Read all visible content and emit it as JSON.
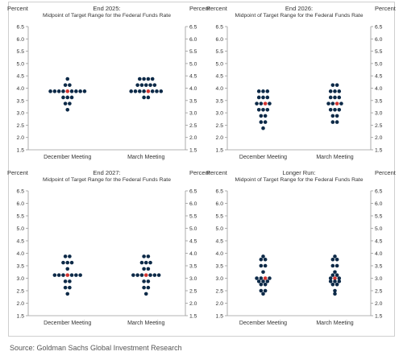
{
  "source": "Source: Goldman Sachs Global Investment Research",
  "colors": {
    "dot": "#0d2a48",
    "median": "#d2332f",
    "axis": "#9a9a9a",
    "text": "#333333",
    "border": "#cfcfcf"
  },
  "chart_data": [
    {
      "type": "scatter",
      "title": "End 2025:",
      "subtitle": "Midpoint of Target Range for the Federal Funds Rate",
      "ylabel_left": "Percent",
      "ylabel_right": "Percent",
      "ylim": [
        1.5,
        6.5
      ],
      "yticks": [
        "6.5",
        "6.0",
        "5.5",
        "5.0",
        "4.5",
        "4.0",
        "3.5",
        "3.0",
        "2.5",
        "2.0",
        "1.5"
      ],
      "categories": [
        "December Meeting",
        "March Meeting"
      ],
      "series": [
        {
          "rows": [
            {
              "y": 4.375,
              "n": 1
            },
            {
              "y": 4.125,
              "n": 2
            },
            {
              "y": 3.875,
              "n": 9
            },
            {
              "y": 3.625,
              "n": 3
            },
            {
              "y": 3.375,
              "n": 2
            },
            {
              "y": 3.125,
              "n": 1
            }
          ],
          "median": 3.875
        },
        {
          "rows": [
            {
              "y": 4.375,
              "n": 4
            },
            {
              "y": 4.125,
              "n": 5
            },
            {
              "y": 3.875,
              "n": 8
            },
            {
              "y": 3.625,
              "n": 2
            }
          ],
          "median": 3.875
        }
      ]
    },
    {
      "type": "scatter",
      "title": "End 2026:",
      "subtitle": "Midpoint of Target Range for the Federal Funds Rate",
      "ylabel_left": "Percent",
      "ylabel_right": "Percent",
      "ylim": [
        1.5,
        6.5
      ],
      "yticks": [
        "6.5",
        "6.0",
        "5.5",
        "5.0",
        "4.5",
        "4.0",
        "3.5",
        "3.0",
        "2.5",
        "2.0",
        "1.5"
      ],
      "categories": [
        "December Meeting",
        "March Meeting"
      ],
      "series": [
        {
          "rows": [
            {
              "y": 3.875,
              "n": 3
            },
            {
              "y": 3.625,
              "n": 3
            },
            {
              "y": 3.375,
              "n": 4
            },
            {
              "y": 3.125,
              "n": 3
            },
            {
              "y": 2.875,
              "n": 2
            },
            {
              "y": 2.625,
              "n": 2
            },
            {
              "y": 2.375,
              "n": 1
            }
          ],
          "median": 3.375
        },
        {
          "rows": [
            {
              "y": 4.125,
              "n": 2
            },
            {
              "y": 3.875,
              "n": 3
            },
            {
              "y": 3.625,
              "n": 3
            },
            {
              "y": 3.375,
              "n": 4
            },
            {
              "y": 3.125,
              "n": 3
            },
            {
              "y": 2.875,
              "n": 2
            },
            {
              "y": 2.625,
              "n": 2
            }
          ],
          "median": 3.375
        }
      ]
    },
    {
      "type": "scatter",
      "title": "End 2027:",
      "subtitle": "Midpoint of Target Range for the Federal Funds Rate",
      "ylabel_left": "Percent",
      "ylabel_right": "Percent",
      "ylim": [
        1.5,
        6.5
      ],
      "yticks": [
        "6.5",
        "6.0",
        "5.5",
        "5.0",
        "4.5",
        "4.0",
        "3.5",
        "3.0",
        "2.5",
        "2.0",
        "1.5"
      ],
      "categories": [
        "December Meeting",
        "March Meeting"
      ],
      "series": [
        {
          "rows": [
            {
              "y": 3.875,
              "n": 2
            },
            {
              "y": 3.625,
              "n": 3
            },
            {
              "y": 3.375,
              "n": 1
            },
            {
              "y": 3.125,
              "n": 7
            },
            {
              "y": 2.875,
              "n": 2
            },
            {
              "y": 2.625,
              "n": 2
            },
            {
              "y": 2.375,
              "n": 1
            }
          ],
          "median": 3.125
        },
        {
          "rows": [
            {
              "y": 3.875,
              "n": 2
            },
            {
              "y": 3.625,
              "n": 3
            },
            {
              "y": 3.375,
              "n": 2
            },
            {
              "y": 3.125,
              "n": 7
            },
            {
              "y": 2.875,
              "n": 2
            },
            {
              "y": 2.625,
              "n": 2
            },
            {
              "y": 2.375,
              "n": 1
            }
          ],
          "median": 3.125
        }
      ]
    },
    {
      "type": "scatter",
      "title": "Longer Run:",
      "subtitle": "Midpoint of Target Range for the Federal Funds Rate",
      "ylabel_left": "Percent",
      "ylabel_right": "Percent",
      "ylim": [
        1.5,
        6.5
      ],
      "yticks": [
        "6.5",
        "6.0",
        "5.5",
        "5.0",
        "4.5",
        "4.0",
        "3.5",
        "3.0",
        "2.5",
        "2.0",
        "1.5"
      ],
      "categories": [
        "December Meeting",
        "March Meeting"
      ],
      "series": [
        {
          "rows": [
            {
              "y": 3.875,
              "n": 1
            },
            {
              "y": 3.75,
              "n": 2
            },
            {
              "y": 3.5,
              "n": 2
            },
            {
              "y": 3.25,
              "n": 1
            },
            {
              "y": 3.0,
              "n": 4
            },
            {
              "y": 2.875,
              "n": 3
            },
            {
              "y": 2.75,
              "n": 2
            },
            {
              "y": 2.5,
              "n": 2
            },
            {
              "y": 2.375,
              "n": 1
            }
          ],
          "median": 3.0
        },
        {
          "rows": [
            {
              "y": 3.875,
              "n": 1
            },
            {
              "y": 3.75,
              "n": 2
            },
            {
              "y": 3.5,
              "n": 2
            },
            {
              "y": 3.25,
              "n": 1
            },
            {
              "y": 3.125,
              "n": 2
            },
            {
              "y": 3.0,
              "n": 3
            },
            {
              "y": 2.875,
              "n": 3
            },
            {
              "y": 2.75,
              "n": 2
            },
            {
              "y": 2.5,
              "n": 1
            },
            {
              "y": 2.375,
              "n": 1
            }
          ],
          "median": 3.0
        }
      ]
    }
  ]
}
